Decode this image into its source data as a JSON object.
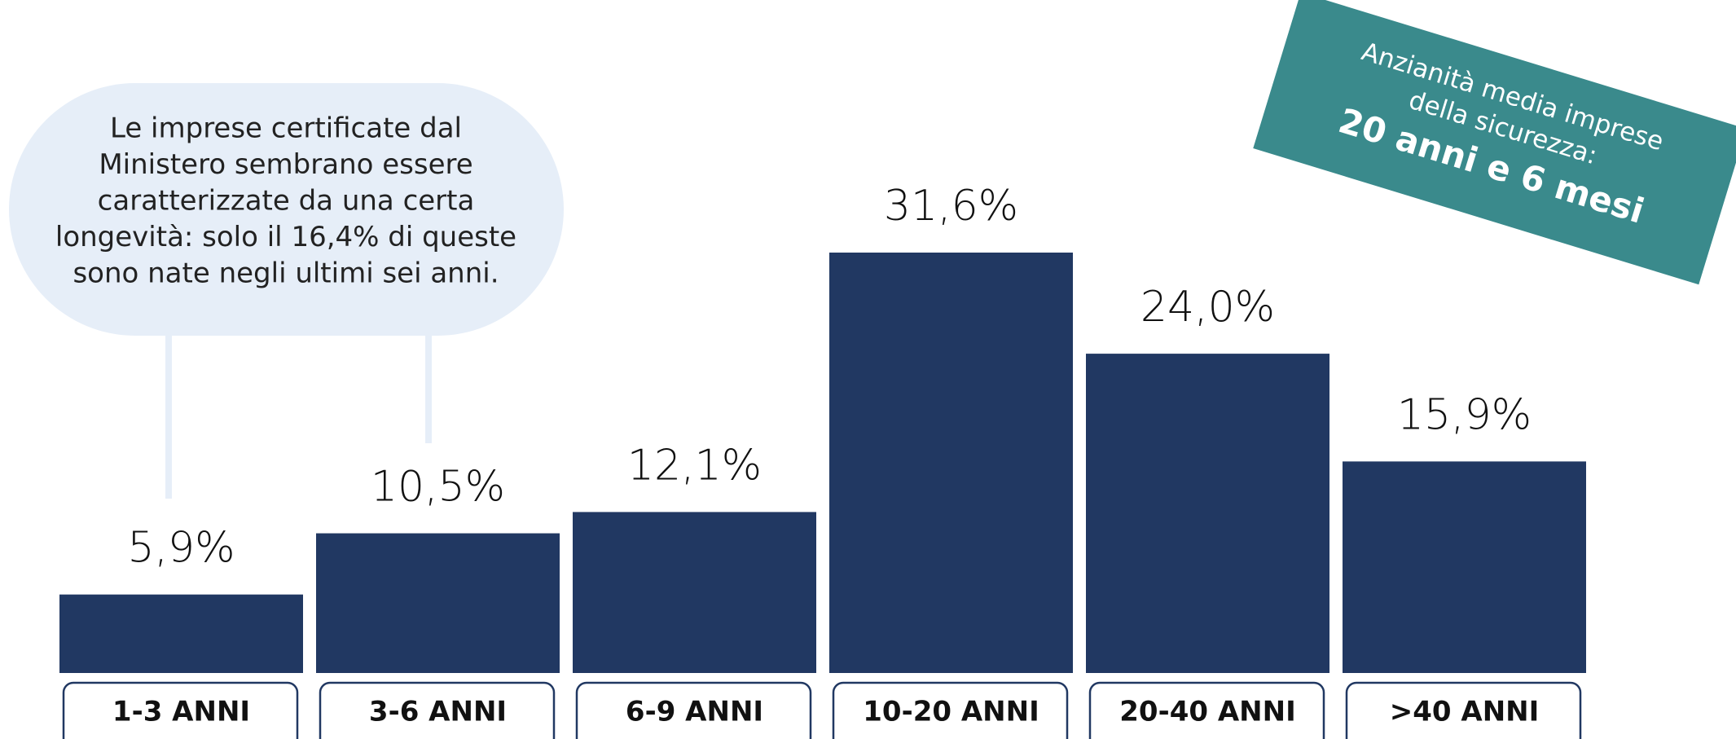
{
  "chart_data": {
    "type": "bar",
    "categories": [
      "1-3 ANNI",
      "3-6 ANNI",
      "6-9 ANNI",
      "10-20 ANNI",
      "20-40 ANNI",
      ">40 ANNI"
    ],
    "values": [
      5.9,
      10.5,
      12.1,
      31.6,
      24.0,
      15.9
    ],
    "value_labels": [
      "5,9%",
      "10,5%",
      "12,1%",
      "31,6%",
      "24,0%",
      "15,9%"
    ],
    "color": "#213862",
    "annotations": {
      "callout": [
        "Le imprese certificate dal",
        "Ministero sembrano essere",
        "caratterizzate da una certa",
        "longevità: solo il 16,4% di queste",
        "sono nate negli ultimi sei anni."
      ],
      "badge": [
        "Anzianità media imprese",
        "della sicurezza:",
        "20 anni e 6 mesi"
      ]
    }
  }
}
